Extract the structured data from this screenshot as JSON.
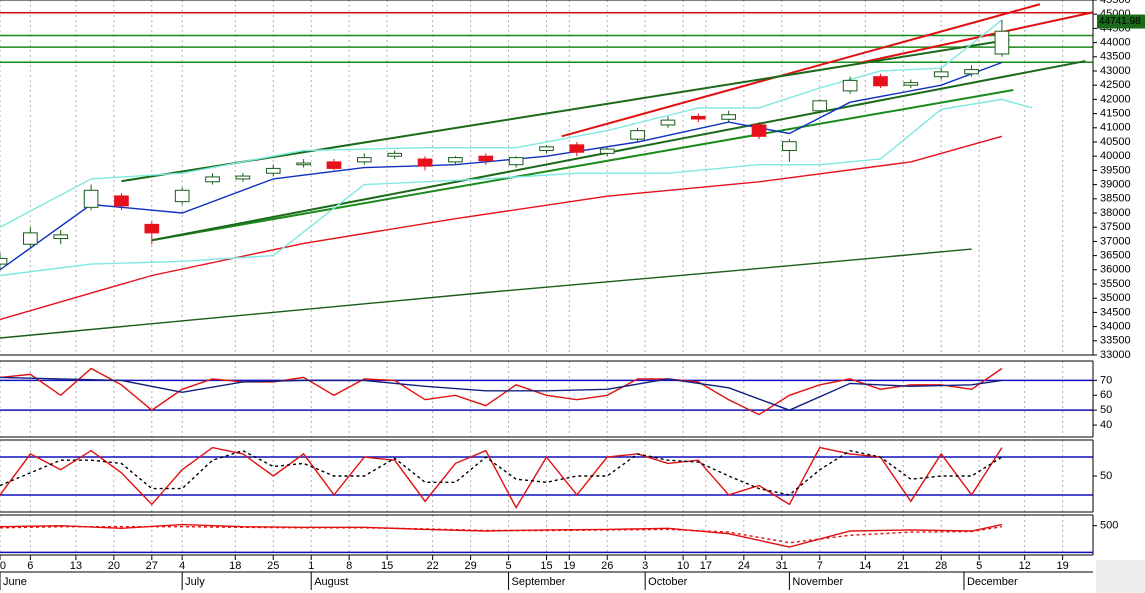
{
  "chart_data": [
    {
      "type": "candlestick",
      "x": [
        0,
        4,
        8,
        12,
        16,
        20,
        24,
        28,
        32,
        36,
        40,
        44,
        48,
        52,
        56,
        60,
        64,
        68,
        72,
        76,
        80,
        84,
        88,
        92,
        96,
        100,
        104,
        108,
        112,
        116,
        120,
        124,
        128,
        132
      ],
      "open": [
        36200,
        36900,
        37100,
        38200,
        38600,
        37600,
        38400,
        39100,
        39200,
        39400,
        39700,
        39800,
        39800,
        40000,
        39900,
        39800,
        40000,
        39700,
        40200,
        40400,
        40100,
        40600,
        41100,
        41400,
        41300,
        41100,
        40200,
        41600,
        42300,
        42800,
        42500,
        42800,
        42900,
        43600
      ],
      "high": [
        36600,
        37500,
        37400,
        39000,
        38700,
        37700,
        38900,
        39400,
        39400,
        39700,
        39900,
        39900,
        40100,
        40200,
        40000,
        40000,
        40100,
        40000,
        40400,
        40500,
        40300,
        41000,
        41400,
        41500,
        41600,
        41200,
        40600,
        42000,
        42800,
        42900,
        42700,
        43100,
        43200,
        44800
      ],
      "low": [
        36000,
        36800,
        36900,
        38100,
        38100,
        36900,
        38300,
        39000,
        39100,
        39300,
        39600,
        39500,
        39700,
        39900,
        39500,
        39700,
        39700,
        39600,
        40100,
        40000,
        40000,
        40500,
        41000,
        41200,
        41200,
        40600,
        39800,
        41500,
        42200,
        42400,
        42400,
        42700,
        42800,
        43500
      ],
      "close": [
        36400,
        37300,
        37230,
        38800,
        38250,
        37300,
        38800,
        39270,
        39300,
        39570,
        39760,
        39570,
        39950,
        40100,
        39650,
        39950,
        39840,
        39950,
        40330,
        40140,
        40250,
        40900,
        41270,
        41310,
        41460,
        40700,
        40510,
        41950,
        42670,
        42480,
        42590,
        42970,
        43050,
        44400
      ],
      "up_color": "#ffffff",
      "down_color": "#e8101a",
      "candle_edge": "#1a5c1a",
      "series": [
        {
          "color": "#1a5c1a",
          "x": [
            0,
            32,
            64,
            96,
            128
          ],
          "values": [
            33600,
            34400,
            35200,
            35950,
            36730
          ]
        },
        {
          "color": "#e8101a",
          "x": [
            0,
            20,
            40,
            60,
            80,
            100,
            120,
            132
          ],
          "values": [
            34250,
            35800,
            36930,
            37800,
            38590,
            39100,
            39800,
            40700
          ]
        },
        {
          "color": "#7fe8e0",
          "x": [
            0,
            12,
            24,
            40,
            56,
            68,
            80,
            92,
            100,
            108,
            116,
            124,
            132
          ],
          "values": [
            37500,
            39200,
            39400,
            40200,
            40300,
            40300,
            40900,
            41700,
            41700,
            42400,
            43000,
            43100,
            44800
          ]
        },
        {
          "color": "#7fe8e0",
          "x": [
            0,
            12,
            24,
            36,
            48,
            64,
            76,
            88,
            100,
            108,
            116,
            124,
            132,
            136
          ],
          "values": [
            35800,
            36200,
            36300,
            36500,
            39000,
            39200,
            39400,
            39400,
            39700,
            39700,
            39900,
            41650,
            42000,
            41700
          ]
        },
        {
          "color": "#1030c0",
          "x": [
            0,
            12,
            24,
            36,
            48,
            60,
            72,
            84,
            96,
            104,
            112,
            124,
            132
          ],
          "values": [
            36000,
            38300,
            38000,
            39200,
            39600,
            39700,
            40000,
            40500,
            41200,
            40800,
            41900,
            42500,
            43300
          ]
        }
      ],
      "hlines": [
        {
          "value": 45050,
          "color": "#d01010"
        },
        {
          "value": 44250,
          "color": "#1a8a1a"
        },
        {
          "value": 43840,
          "color": "#1a8a1a"
        },
        {
          "value": 43310,
          "color": "#1a8a1a"
        }
      ],
      "trendlines": [
        {
          "color": "#e01010",
          "x": [
            74,
            137
          ],
          "values": [
            40700,
            45350
          ]
        },
        {
          "color": "#e01010",
          "x": [
            113,
            147
          ],
          "values": [
            43270,
            45240
          ]
        },
        {
          "color": "#1a6a1a",
          "x": [
            16,
            133
          ],
          "values": [
            39120,
            44100
          ]
        },
        {
          "color": "#1a8a1a",
          "x": [
            20,
            133.5
          ],
          "values": [
            37040,
            42330
          ]
        },
        {
          "color": "#1a6a1a",
          "x": [
            20,
            143
          ],
          "values": [
            37040,
            43350
          ]
        }
      ],
      "last_price": 44741.98,
      "ylim": [
        33000,
        45500
      ],
      "yticks": [
        33000,
        33500,
        34000,
        34500,
        35000,
        35500,
        36000,
        36500,
        37000,
        37500,
        38000,
        38500,
        39000,
        39500,
        40000,
        40500,
        41000,
        41500,
        42000,
        42500,
        43000,
        43500,
        44000,
        44500,
        45000,
        45500
      ],
      "xlim": [
        0,
        144
      ],
      "xticks": [
        {
          "value": 0,
          "label": "0"
        },
        {
          "value": 4,
          "label": "6"
        },
        {
          "value": 10,
          "label": "13"
        },
        {
          "value": 15,
          "label": "20"
        },
        {
          "value": 20,
          "label": "27"
        },
        {
          "value": 24,
          "label": "4"
        },
        {
          "value": 31,
          "label": "18"
        },
        {
          "value": 36,
          "label": "25"
        },
        {
          "value": 41,
          "label": "1"
        },
        {
          "value": 46,
          "label": "8"
        },
        {
          "value": 51,
          "label": "15"
        },
        {
          "value": 57,
          "label": "22"
        },
        {
          "value": 62,
          "label": "29"
        },
        {
          "value": 67,
          "label": "5"
        },
        {
          "value": 72,
          "label": "15"
        },
        {
          "value": 75,
          "label": "19"
        },
        {
          "value": 80,
          "label": "26"
        },
        {
          "value": 85,
          "label": "3"
        },
        {
          "value": 90,
          "label": "10"
        },
        {
          "value": 93,
          "label": "17"
        },
        {
          "value": 98,
          "label": "24"
        },
        {
          "value": 103,
          "label": "31"
        },
        {
          "value": 108,
          "label": "7"
        },
        {
          "value": 114,
          "label": "14"
        },
        {
          "value": 119,
          "label": "21"
        },
        {
          "value": 124,
          "label": "28"
        },
        {
          "value": 129,
          "label": "5"
        },
        {
          "value": 135,
          "label": "12"
        },
        {
          "value": 140,
          "label": "19"
        }
      ],
      "months": {
        "x": [
          0,
          24,
          41,
          67,
          85,
          104,
          127
        ],
        "labels": [
          "June",
          "July",
          "August",
          "September",
          "October",
          "November",
          "December"
        ]
      }
    },
    {
      "type": "line",
      "series": [
        {
          "color": "#e01010",
          "x": [
            0,
            4,
            8,
            12,
            16,
            20,
            24,
            28,
            32,
            36,
            40,
            44,
            48,
            52,
            56,
            60,
            64,
            68,
            72,
            76,
            80,
            84,
            88,
            92,
            96,
            100,
            104,
            108,
            112,
            116,
            120,
            124,
            128,
            132
          ],
          "values": [
            72,
            74,
            60,
            78,
            67,
            50,
            64,
            71,
            69,
            69,
            72,
            60,
            71,
            70,
            57,
            60,
            53,
            67,
            60,
            57,
            60,
            71,
            71,
            69,
            57,
            47,
            60,
            67,
            71,
            64,
            67,
            67,
            64,
            78
          ]
        },
        {
          "color": "#102080",
          "x": [
            0,
            8,
            16,
            24,
            32,
            40,
            48,
            56,
            64,
            72,
            80,
            88,
            96,
            104,
            112,
            120,
            128,
            132
          ],
          "values": [
            72,
            71,
            70,
            62,
            69,
            70,
            70,
            66,
            63,
            63,
            64,
            71,
            65,
            50,
            68,
            66,
            67,
            70
          ]
        }
      ],
      "hlines": [
        {
          "value": 70,
          "color": "#1010c0"
        },
        {
          "value": 50,
          "color": "#1010c0"
        }
      ],
      "ylim": [
        32,
        83
      ],
      "yticks": [
        40,
        50,
        60,
        70
      ]
    },
    {
      "type": "line",
      "series": [
        {
          "color": "#e01010",
          "x": [
            0,
            4,
            8,
            12,
            16,
            20,
            24,
            28,
            32,
            36,
            40,
            44,
            48,
            52,
            56,
            60,
            64,
            68,
            72,
            76,
            80,
            84,
            88,
            92,
            96,
            100,
            104,
            108,
            112,
            116,
            120,
            124,
            128,
            132
          ],
          "values": [
            20,
            85,
            60,
            90,
            55,
            5,
            60,
            95,
            85,
            50,
            85,
            20,
            80,
            75,
            10,
            70,
            90,
            0,
            80,
            20,
            80,
            85,
            70,
            75,
            20,
            35,
            5,
            95,
            85,
            80,
            10,
            85,
            20,
            95
          ]
        },
        {
          "color": "#000000",
          "dash": true,
          "x": [
            0,
            4,
            8,
            12,
            16,
            20,
            24,
            28,
            32,
            36,
            40,
            44,
            48,
            52,
            56,
            60,
            64,
            68,
            72,
            76,
            80,
            84,
            88,
            92,
            96,
            100,
            104,
            108,
            112,
            116,
            120,
            124,
            128,
            132
          ],
          "values": [
            35,
            55,
            75,
            75,
            70,
            30,
            30,
            75,
            90,
            65,
            70,
            50,
            50,
            78,
            40,
            40,
            80,
            45,
            40,
            50,
            50,
            85,
            75,
            72,
            50,
            30,
            20,
            60,
            90,
            80,
            45,
            50,
            50,
            80
          ]
        }
      ],
      "hlines": [
        {
          "value": 80,
          "color": "#1010c0"
        },
        {
          "value": 20,
          "color": "#1010c0"
        }
      ],
      "ylim": [
        -7,
        107
      ],
      "yticks": [
        50
      ]
    },
    {
      "type": "line",
      "series": [
        {
          "color": "#e01010",
          "x": [
            0,
            8,
            16,
            24,
            32,
            40,
            48,
            56,
            64,
            72,
            80,
            88,
            96,
            104,
            112,
            120,
            128,
            132
          ],
          "values": [
            480,
            500,
            450,
            520,
            480,
            470,
            470,
            430,
            400,
            420,
            430,
            450,
            350,
            100,
            400,
            420,
            400,
            520
          ]
        },
        {
          "color": "#e01010",
          "dash": true,
          "x": [
            0,
            8,
            16,
            24,
            32,
            40,
            48,
            56,
            64,
            72,
            80,
            88,
            96,
            104,
            112,
            120,
            128,
            132
          ],
          "values": [
            460,
            480,
            480,
            480,
            470,
            460,
            460,
            440,
            410,
            410,
            420,
            430,
            380,
            180,
            320,
            380,
            390,
            480
          ]
        }
      ],
      "hlines": [
        {
          "value": 0,
          "color": "#1010c0"
        }
      ],
      "ylim": [
        -50,
        700
      ],
      "yticks": [
        500
      ]
    }
  ]
}
